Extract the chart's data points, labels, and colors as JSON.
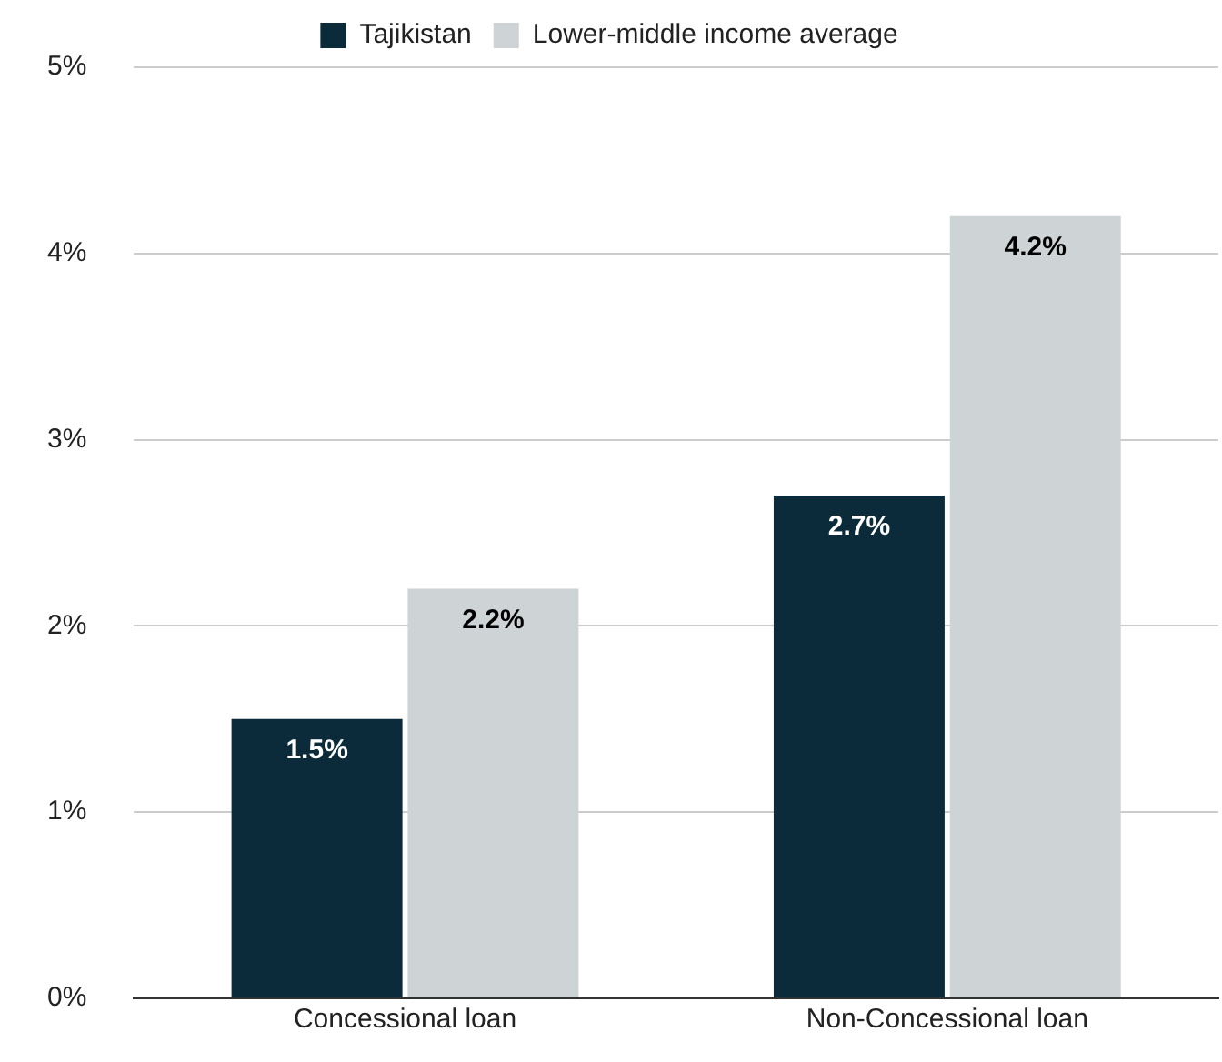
{
  "chart_data": {
    "type": "bar",
    "categories": [
      "Concessional loan",
      "Non-Concessional loan"
    ],
    "series": [
      {
        "name": "Tajikistan",
        "color": "#0b2b3a",
        "values": [
          1.5,
          2.7
        ],
        "value_labels": [
          "1.5%",
          "2.7%"
        ]
      },
      {
        "name": "Lower-middle income average",
        "color": "#ced4d5",
        "values": [
          2.2,
          4.2
        ],
        "value_labels": [
          "2.2%",
          "4.2%"
        ]
      }
    ],
    "ylim": [
      0,
      5
    ],
    "yticks": [
      {
        "value": 0,
        "label": "0%"
      },
      {
        "value": 1,
        "label": "1%"
      },
      {
        "value": 2,
        "label": "2%"
      },
      {
        "value": 3,
        "label": "3%"
      },
      {
        "value": 4,
        "label": "4%"
      },
      {
        "value": 5,
        "label": "5%"
      }
    ],
    "grid": "y",
    "legend": "top"
  }
}
